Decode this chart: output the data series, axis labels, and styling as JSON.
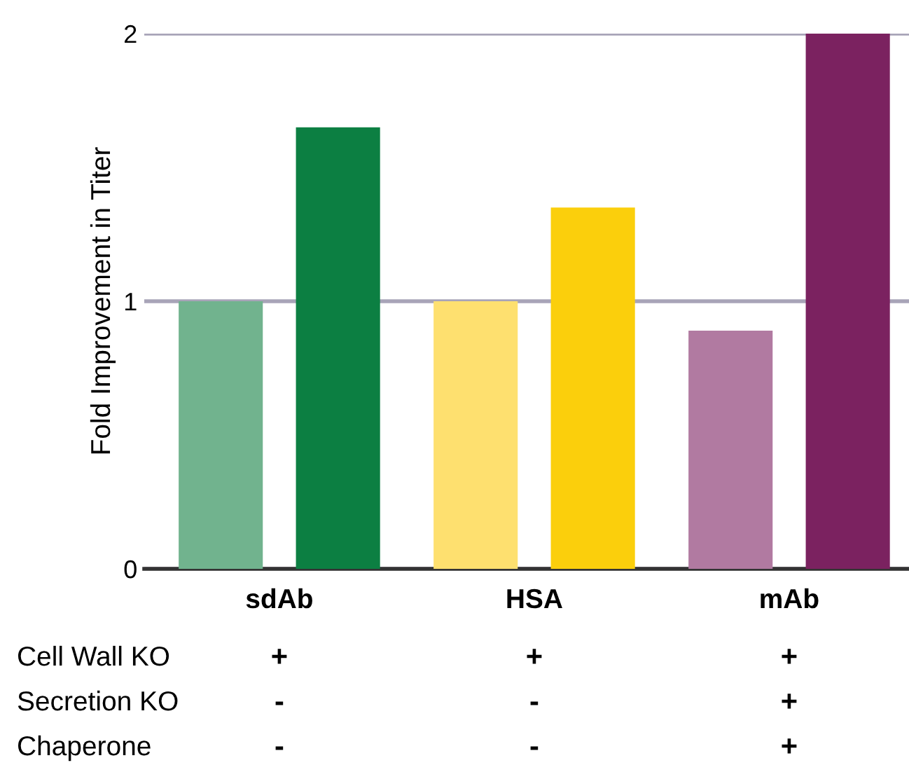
{
  "chart_data": {
    "type": "bar",
    "ylabel": "Fold Improvement in Titer",
    "categories": [
      "sdAb",
      "HSA",
      "mAb"
    ],
    "series": [
      {
        "colors": [
          "#71b38e",
          "#fee06f",
          "#b17aa1"
        ],
        "values": [
          1.0,
          1.0,
          0.89
        ]
      },
      {
        "colors": [
          "#0c7f42",
          "#fbcf0c",
          "#7b2260"
        ],
        "values": [
          1.65,
          1.35,
          2.0
        ]
      }
    ],
    "ylim": [
      0,
      2
    ],
    "yticks": [
      0,
      1,
      2
    ],
    "grid": "y",
    "legend": false,
    "annotations": [
      "Cell Wall KO",
      "+",
      "+",
      "+",
      "Secretion KO",
      "-",
      "-",
      "+",
      "Chaperone",
      "-",
      "-",
      "+"
    ]
  }
}
